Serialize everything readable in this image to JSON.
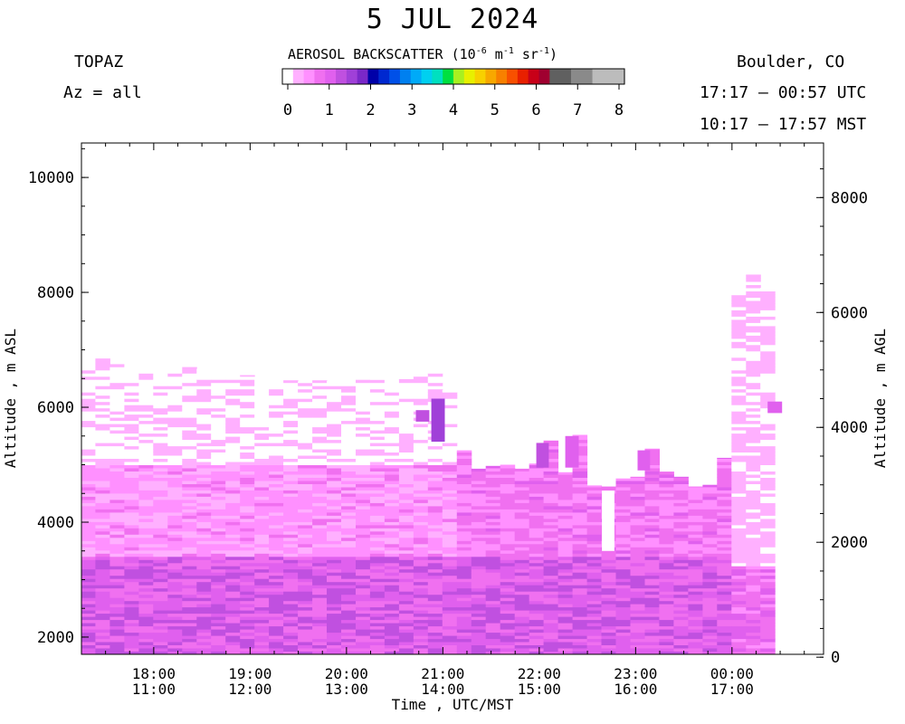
{
  "header": {
    "title": "5 JUL 2024",
    "instrument": "TOPAZ",
    "azimuth": "Az = all",
    "location": "Boulder, CO",
    "utc_range": "17:17 – 00:57 UTC",
    "mst_range": "10:17 – 17:57 MST"
  },
  "colorbar": {
    "title_prefix": "AEROSOL BACKSCATTER (10",
    "exp1": "-6",
    "mid": " m",
    "exp2": "-1",
    "mid2": " sr",
    "exp3": "-1",
    "suffix": ")",
    "ticks": [
      "0",
      "1",
      "2",
      "3",
      "4",
      "5",
      "6",
      "7",
      "8"
    ],
    "colors": [
      "#ffffff",
      "#ffb0ff",
      "#ff90ff",
      "#f070f0",
      "#e060ee",
      "#c050e0",
      "#a040d8",
      "#7a28c8",
      "#0000a8",
      "#0028d0",
      "#0050e8",
      "#0080f0",
      "#00aaf8",
      "#00d0f0",
      "#00e0c0",
      "#00e040",
      "#a8f020",
      "#e8f000",
      "#f8d000",
      "#f8a800",
      "#f88000",
      "#f85000",
      "#e82000",
      "#c80018",
      "#a00030",
      "#606060",
      "#606060",
      "#8a8a8a",
      "#8a8a8a",
      "#bcbcbc",
      "#bcbcbc",
      "#bcbcbc"
    ]
  },
  "chart_data": {
    "type": "heatmap",
    "title": "5 JUL 2024",
    "xlabel": "Time , UTC/MST",
    "ylabel_left": "Altitude , m ASL",
    "ylabel_right": "Altitude , m AGL",
    "x_ticks_utc": [
      "18:00",
      "19:00",
      "20:00",
      "21:00",
      "22:00",
      "23:00",
      "00:00"
    ],
    "x_ticks_mst": [
      "11:00",
      "12:00",
      "13:00",
      "14:00",
      "15:00",
      "16:00",
      "17:00"
    ],
    "x_range_hours": [
      17.25,
      24.95
    ],
    "x_tick_hours": [
      18,
      19,
      20,
      21,
      22,
      23,
      24
    ],
    "ylim_asl": [
      1700,
      10600
    ],
    "y_ticks_asl": [
      2000,
      4000,
      6000,
      8000,
      10000
    ],
    "y_ticks_agl": [
      0,
      2000,
      4000,
      6000,
      8000
    ],
    "agl_offset": 1650,
    "value_units": "10^-6 m^-1 sr^-1",
    "value_range": [
      0,
      8
    ],
    "profiles": [
      {
        "t": 17.32,
        "top": 6950
      },
      {
        "t": 17.47,
        "top": 6850
      },
      {
        "t": 17.62,
        "top": 6750
      },
      {
        "t": 17.77,
        "top": 6780
      },
      {
        "t": 17.92,
        "top": 6720
      },
      {
        "t": 18.07,
        "top": 6730
      },
      {
        "t": 18.22,
        "top": 6680
      },
      {
        "t": 18.37,
        "top": 6700
      },
      {
        "t": 18.52,
        "top": 6670
      },
      {
        "t": 18.67,
        "top": 6620
      },
      {
        "t": 18.82,
        "top": 6600
      },
      {
        "t": 18.97,
        "top": 6560
      },
      {
        "t": 19.12,
        "top": 6500
      },
      {
        "t": 19.27,
        "top": 6480
      },
      {
        "t": 19.42,
        "top": 6470
      },
      {
        "t": 19.57,
        "top": 6450
      },
      {
        "t": 19.72,
        "top": 6470
      },
      {
        "t": 19.87,
        "top": 6460
      },
      {
        "t": 20.02,
        "top": 6490
      },
      {
        "t": 20.17,
        "top": 6490
      },
      {
        "t": 20.32,
        "top": 6500
      },
      {
        "t": 20.47,
        "top": 6510
      },
      {
        "t": 20.62,
        "top": 6490
      },
      {
        "t": 20.77,
        "top": 6570
      },
      {
        "t": 20.92,
        "top": 6740
      },
      {
        "t": 21.07,
        "top": 6300
      },
      {
        "t": 21.22,
        "top": 5250
      },
      {
        "t": 21.37,
        "top": 4930
      },
      {
        "t": 21.52,
        "top": 4980
      },
      {
        "t": 21.67,
        "top": 5000
      },
      {
        "t": 21.82,
        "top": 4930
      },
      {
        "t": 21.97,
        "top": 5020
      },
      {
        "t": 22.12,
        "top": 5420
      },
      {
        "t": 22.27,
        "top": 4870
      },
      {
        "t": 22.42,
        "top": 5520
      },
      {
        "t": 22.57,
        "top": 4640
      },
      {
        "t": 22.72,
        "top": 4620
      },
      {
        "t": 22.87,
        "top": 4760
      },
      {
        "t": 23.02,
        "top": 4790
      },
      {
        "t": 23.17,
        "top": 5280
      },
      {
        "t": 23.32,
        "top": 4880
      },
      {
        "t": 23.47,
        "top": 4790
      },
      {
        "t": 23.62,
        "top": 4620
      },
      {
        "t": 23.77,
        "top": 4650
      },
      {
        "t": 23.92,
        "top": 5120
      },
      {
        "t": 24.07,
        "top": 7950
      },
      {
        "t": 24.22,
        "top": 8310
      },
      {
        "t": 24.37,
        "top": 8080
      }
    ],
    "features": [
      {
        "t0": 20.72,
        "t1": 20.86,
        "z0": 5750,
        "z1": 5950,
        "value": 1.4
      },
      {
        "t0": 20.88,
        "t1": 21.02,
        "z0": 5400,
        "z1": 6150,
        "value": 1.6
      },
      {
        "t0": 21.97,
        "t1": 22.1,
        "z0": 4950,
        "z1": 5380,
        "value": 1.3
      },
      {
        "t0": 22.27,
        "t1": 22.41,
        "z0": 4950,
        "z1": 5500,
        "value": 1.2
      },
      {
        "t0": 23.02,
        "t1": 23.15,
        "z0": 4900,
        "z1": 5250,
        "value": 1.1
      },
      {
        "t0": 24.37,
        "t1": 24.52,
        "z0": 5900,
        "z1": 6100,
        "value": 1.0
      }
    ],
    "gaps": [
      {
        "t0": 22.65,
        "t1": 22.78,
        "z0": 3500,
        "z1": 4550
      }
    ]
  }
}
